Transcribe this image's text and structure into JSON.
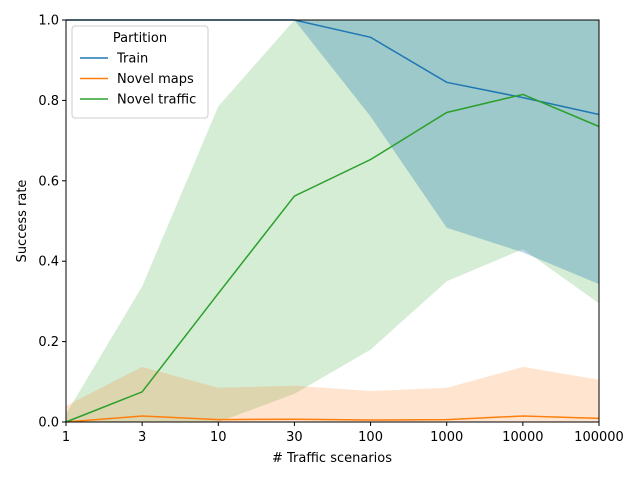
{
  "chart_data": {
    "type": "line",
    "xlabel": "# Traffic scenarios",
    "ylabel": "Success rate",
    "x": [
      1,
      3,
      10,
      30,
      100,
      1000,
      10000,
      100000
    ],
    "x_tick_labels": [
      "1",
      "3",
      "10",
      "30",
      "100",
      "1000",
      "10000",
      "100000"
    ],
    "x_scale": "categorical",
    "ylim": [
      0,
      1
    ],
    "y_ticks": [
      0.0,
      0.2,
      0.4,
      0.6,
      0.8,
      1.0
    ],
    "y_tick_labels": [
      "0.0",
      "0.2",
      "0.4",
      "0.6",
      "0.8",
      "1.0"
    ],
    "grid": false,
    "legend": {
      "title": "Partition",
      "placement": "top-left"
    },
    "series": [
      {
        "name": "Train",
        "color": "#1f77b4",
        "values": [
          1.0,
          1.0,
          1.0,
          1.0,
          0.957,
          0.845,
          0.807,
          0.765
        ],
        "band_lower": [
          1.0,
          1.0,
          1.0,
          1.0,
          0.76,
          0.483,
          0.422,
          0.343
        ],
        "band_upper": [
          1.0,
          1.0,
          1.0,
          1.0,
          1.0,
          1.0,
          1.0,
          1.0
        ]
      },
      {
        "name": "Novel maps",
        "color": "#ff7f0e",
        "values": [
          0.0,
          0.015,
          0.006,
          0.007,
          0.005,
          0.006,
          0.015,
          0.009
        ],
        "band_lower": [
          0.0,
          0.0,
          0.0,
          0.0,
          0.0,
          0.0,
          0.0,
          0.0
        ],
        "band_upper": [
          0.04,
          0.137,
          0.085,
          0.09,
          0.077,
          0.085,
          0.137,
          0.105
        ]
      },
      {
        "name": "Novel traffic",
        "color": "#2ca02c",
        "values": [
          0.0,
          0.075,
          0.32,
          0.562,
          0.653,
          0.77,
          0.815,
          0.735
        ],
        "band_lower": [
          0.0,
          0.0,
          0.0,
          0.07,
          0.18,
          0.35,
          0.43,
          0.295
        ],
        "band_upper": [
          0.02,
          0.337,
          0.785,
          1.0,
          1.0,
          1.0,
          1.0,
          1.0
        ]
      }
    ]
  }
}
